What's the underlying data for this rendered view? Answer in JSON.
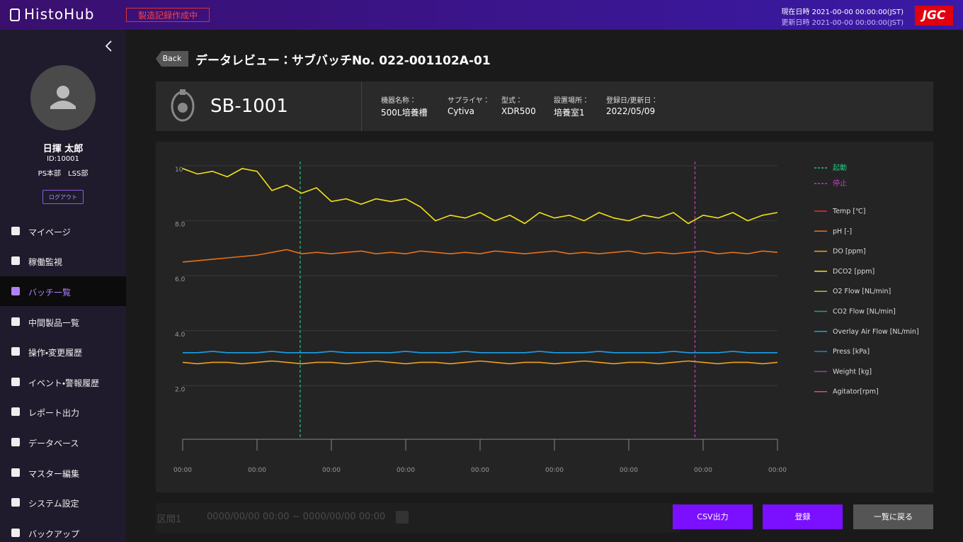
{
  "header": {
    "logo": "HistoHub",
    "status": "製造記録作成中",
    "current": "現在日時 2021-00-00  00:00:00(JST)",
    "updated": "更新日時 2021-00-00  00:00:00(JST)",
    "brand": "JGC"
  },
  "sidebar": {
    "user": {
      "name": "日揮 太郎",
      "id": "ID:10001",
      "dept": "PS本部　LSS部"
    },
    "logout": "ログアウト",
    "active": 2,
    "menu": [
      "マイページ",
      "稼働監視",
      "バッチ一覧",
      "中間製品一覧",
      "操作・変更履歴",
      "イベント・警報履歴",
      "レポート出力",
      "データベース",
      "マスター編集",
      "システム設定",
      "バックアップ"
    ]
  },
  "page": {
    "back": "Back",
    "title": "データレビュー：サブバッチNo. 022-001102A-01"
  },
  "device": {
    "name": "SB-1001",
    "fields": [
      {
        "label": "機器名称：",
        "value": "500L培養槽"
      },
      {
        "label": "サプライヤ：",
        "value": "Cytiva"
      },
      {
        "label": "型式：",
        "value": "XDR500"
      },
      {
        "label": "設置場所：",
        "value": "培養室1"
      },
      {
        "label": "登録日/更新日：",
        "value": "2022/05/09"
      }
    ]
  },
  "chart_data": {
    "type": "line",
    "ylim": [
      0,
      10
    ],
    "yticks": [
      {
        "value": 2,
        "label": "2.0"
      },
      {
        "value": 4,
        "label": "4.0"
      },
      {
        "value": 6,
        "label": "6.0"
      },
      {
        "value": 8,
        "label": "8.0"
      },
      10
    ],
    "xlim": [
      0,
      8
    ],
    "xticks": [
      {
        "value": 0,
        "label": "00:00"
      },
      {
        "value": 1,
        "label": "00:00"
      },
      {
        "value": 2,
        "label": "00:00"
      },
      {
        "value": 3,
        "label": "00:00"
      },
      {
        "value": 4,
        "label": "00:00"
      },
      {
        "value": 5,
        "label": "00:00"
      },
      {
        "value": 6,
        "label": "00:00"
      },
      {
        "value": 7,
        "label": "00:00"
      },
      {
        "value": 8,
        "label": "00:00"
      }
    ],
    "grid": true,
    "events": [
      {
        "name": "起動",
        "color": "#20c880",
        "x": 1.58
      },
      {
        "name": "停止",
        "color": "#c040c0",
        "x": 6.89
      }
    ],
    "x": [
      0,
      0.2,
      0.4,
      0.6,
      0.8,
      1,
      1.2,
      1.4,
      1.6,
      1.8,
      2,
      2.2,
      2.4,
      2.6,
      2.8,
      3,
      3.2,
      3.4,
      3.6,
      3.8,
      4,
      4.2,
      4.4,
      4.6,
      4.8,
      5,
      5.2,
      5.4,
      5.6,
      5.8,
      6,
      6.2,
      6.4,
      6.6,
      6.8,
      7,
      7.2,
      7.4,
      7.6,
      7.8,
      8
    ],
    "series": [
      {
        "name": "Temp [℃]",
        "color": "#e0302a"
      },
      {
        "name": "pH [-]",
        "color": "#e8701a",
        "values": [
          6.5,
          6.55,
          6.6,
          6.65,
          6.7,
          6.75,
          6.85,
          6.95,
          6.8,
          6.85,
          6.8,
          6.85,
          6.9,
          6.8,
          6.85,
          6.8,
          6.9,
          6.85,
          6.8,
          6.85,
          6.8,
          6.9,
          6.85,
          6.8,
          6.85,
          6.9,
          6.8,
          6.85,
          6.8,
          6.85,
          6.9,
          6.8,
          6.85,
          6.8,
          6.85,
          6.9,
          6.8,
          6.85,
          6.8,
          6.9,
          6.85
        ]
      },
      {
        "name": "DO [ppm]",
        "color": "#f0a020",
        "values": [
          2.85,
          2.8,
          2.85,
          2.85,
          2.8,
          2.85,
          2.9,
          2.85,
          2.8,
          2.85,
          2.85,
          2.8,
          2.85,
          2.9,
          2.85,
          2.8,
          2.85,
          2.85,
          2.8,
          2.85,
          2.9,
          2.85,
          2.8,
          2.85,
          2.85,
          2.8,
          2.85,
          2.9,
          2.85,
          2.8,
          2.85,
          2.85,
          2.8,
          2.85,
          2.9,
          2.85,
          2.8,
          2.85,
          2.85,
          2.8,
          2.85
        ]
      },
      {
        "name": "DCO2 [ppm]",
        "color": "#f5e11a",
        "values": [
          9.9,
          9.7,
          9.8,
          9.6,
          9.9,
          9.8,
          9.1,
          9.3,
          9.0,
          9.2,
          8.7,
          8.8,
          8.6,
          8.8,
          8.7,
          8.8,
          8.5,
          8.0,
          8.2,
          8.1,
          8.3,
          8.0,
          8.2,
          7.9,
          8.3,
          8.1,
          8.2,
          8.0,
          8.3,
          8.1,
          8.0,
          8.2,
          8.1,
          8.3,
          7.9,
          8.2,
          8.1,
          8.3,
          8.0,
          8.2,
          8.3
        ]
      },
      {
        "name": "O2 Flow [NL/min]",
        "color": "#9acd32"
      },
      {
        "name": "CO2 Flow [NL/min]",
        "color": "#20a080"
      },
      {
        "name": "Overlay Air Flow [NL/min]",
        "color": "#1aa0e8",
        "values": [
          3.2,
          3.2,
          3.25,
          3.2,
          3.2,
          3.2,
          3.25,
          3.2,
          3.2,
          3.2,
          3.25,
          3.2,
          3.2,
          3.2,
          3.2,
          3.25,
          3.2,
          3.2,
          3.2,
          3.25,
          3.2,
          3.2,
          3.2,
          3.2,
          3.25,
          3.2,
          3.2,
          3.2,
          3.25,
          3.2,
          3.2,
          3.2,
          3.2,
          3.25,
          3.2,
          3.2,
          3.2,
          3.25,
          3.2,
          3.2,
          3.2
        ]
      },
      {
        "name": "Press [kPa]",
        "color": "#2080c0"
      },
      {
        "name": "Weight [kg]",
        "color": "#9040a0"
      },
      {
        "name": "Agitator[rpm]",
        "color": "#e040a0"
      }
    ]
  },
  "footer": {
    "range_label": "区間1",
    "range_value": "0000/00/00 00:00 ~ 0000/00/00 00:00",
    "buttons": [
      {
        "label": "CSV出力",
        "color": "#7a10ff"
      },
      {
        "label": "登録",
        "color": "#7a10ff"
      },
      {
        "label": "一覧に戻る",
        "color": "#555555"
      }
    ]
  }
}
